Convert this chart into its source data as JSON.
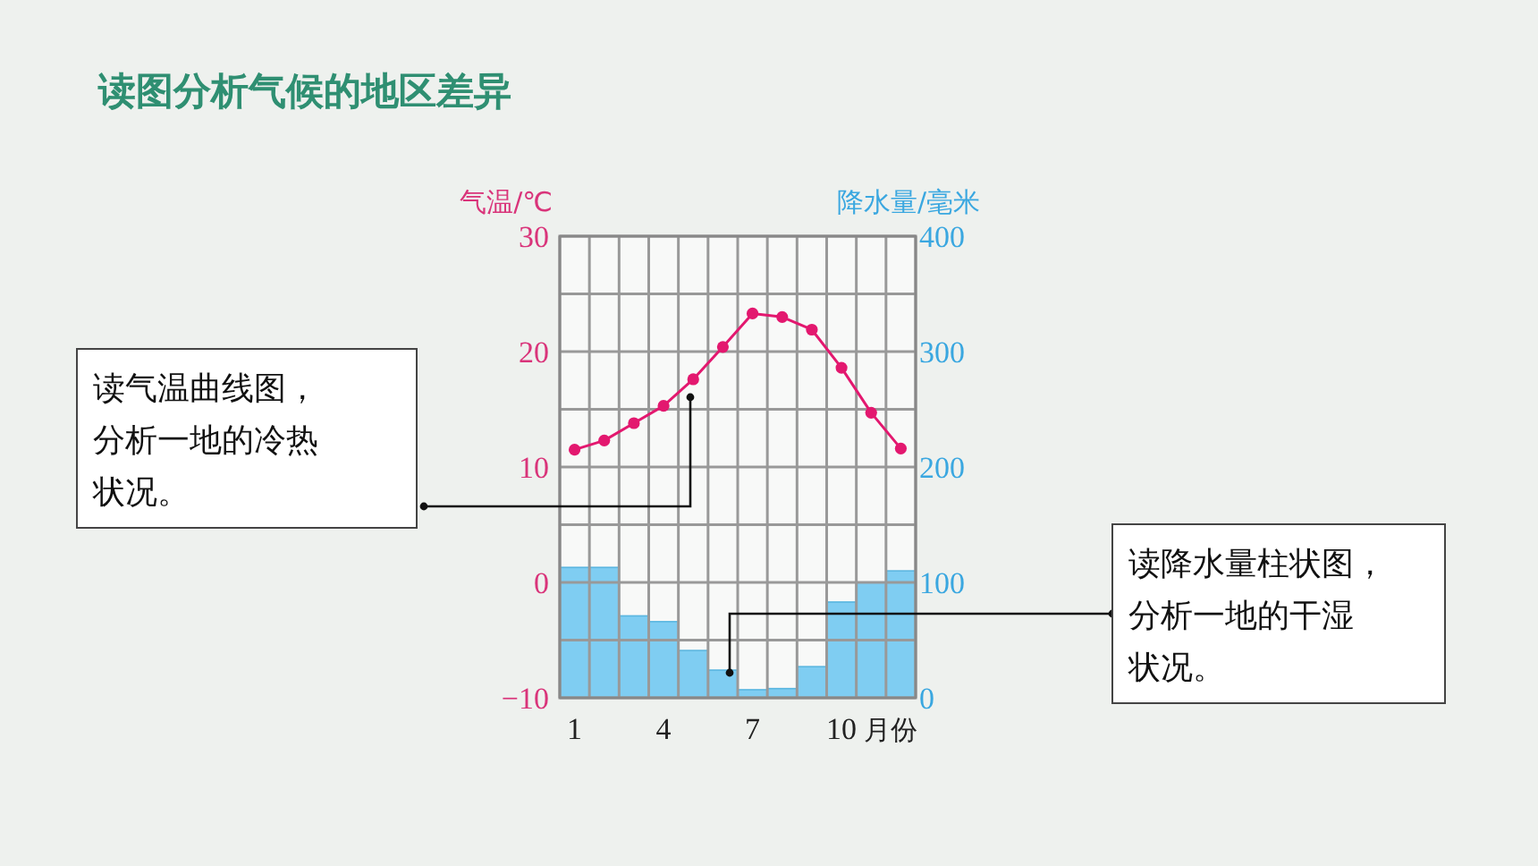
{
  "chart_data": {
    "type": "bar",
    "title": "读图分析气候的地区差异",
    "xlabel": "月份",
    "ylabel": "气温/℃",
    "y2label": "降水量/毫米",
    "annotations": [
      "读气温曲线图，分析一地的冷热状况。",
      "读降水量柱状图，分析一地的干湿状况。"
    ],
    "categories": [
      "1",
      null,
      null,
      "4",
      null,
      null,
      "7",
      null,
      null,
      "10",
      null,
      null
    ],
    "series": [
      {
        "axis": "y2",
        "color": "#7fcdf2",
        "values": [
          113,
          113,
          71,
          66,
          41,
          24,
          7,
          8,
          27,
          83,
          100,
          110
        ]
      },
      {
        "type": "line",
        "color": "#e3186f",
        "marker": "circle",
        "values": [
          11.5,
          12.3,
          13.8,
          15.3,
          17.6,
          20.4,
          23.3,
          23.0,
          21.9,
          18.6,
          14.7,
          11.6
        ]
      }
    ],
    "ylim": [
      -10,
      30
    ],
    "yticks": [
      -10,
      {
        "value": -5,
        "label": null
      },
      0,
      {
        "value": 5,
        "label": null
      },
      10,
      {
        "value": 15,
        "label": null
      },
      20,
      {
        "value": 25,
        "label": null
      },
      30
    ],
    "y2lim": [
      0,
      400
    ],
    "y2ticks": [
      0,
      100,
      200,
      300,
      400
    ],
    "grid": true
  }
}
